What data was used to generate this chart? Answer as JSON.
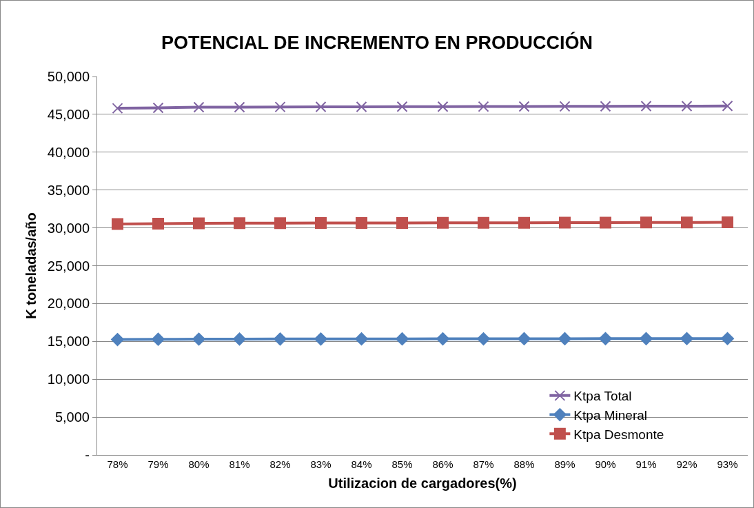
{
  "chart_data": {
    "type": "line",
    "title": "POTENCIAL DE INCREMENTO EN PRODUCCIÓN",
    "xlabel": "Utilizacion de cargadores(%)",
    "ylabel": "K toneladas/año",
    "categories": [
      "78%",
      "79%",
      "80%",
      "81%",
      "82%",
      "83%",
      "84%",
      "85%",
      "86%",
      "87%",
      "88%",
      "89%",
      "90%",
      "91%",
      "92%",
      "93%"
    ],
    "series": [
      {
        "name": "Ktpa Total",
        "color": "#8064a2",
        "marker": "cross",
        "values": [
          45800,
          45850,
          45950,
          45950,
          45980,
          46000,
          46000,
          46010,
          46020,
          46030,
          46040,
          46050,
          46060,
          46080,
          46090,
          46100
        ]
      },
      {
        "name": "Ktpa Mineral",
        "color": "#4f81bd",
        "marker": "diamond",
        "values": [
          15250,
          15280,
          15300,
          15310,
          15320,
          15320,
          15330,
          15330,
          15340,
          15340,
          15350,
          15350,
          15360,
          15360,
          15370,
          15370
        ]
      },
      {
        "name": "Ktpa Desmonte",
        "color": "#c0504d",
        "marker": "square",
        "values": [
          30500,
          30550,
          30600,
          30620,
          30630,
          30640,
          30650,
          30650,
          30660,
          30670,
          30680,
          30690,
          30700,
          30710,
          30720,
          30730
        ]
      }
    ],
    "ylim": [
      0,
      50000
    ],
    "yticks": [
      {
        "value": 0,
        "label": "-"
      },
      {
        "value": 5000,
        "label": "5,000"
      },
      {
        "value": 10000,
        "label": "10,000"
      },
      {
        "value": 15000,
        "label": "15,000"
      },
      {
        "value": 20000,
        "label": "20,000"
      },
      {
        "value": 25000,
        "label": "25,000"
      },
      {
        "value": 30000,
        "label": "30,000"
      },
      {
        "value": 35000,
        "label": "35,000"
      },
      {
        "value": 40000,
        "label": "40,000"
      },
      {
        "value": 45000,
        "label": "45,000"
      },
      {
        "value": 50000,
        "label": "50,000"
      }
    ],
    "grid": "y",
    "legend": "bottom right",
    "line_style": "solid"
  }
}
